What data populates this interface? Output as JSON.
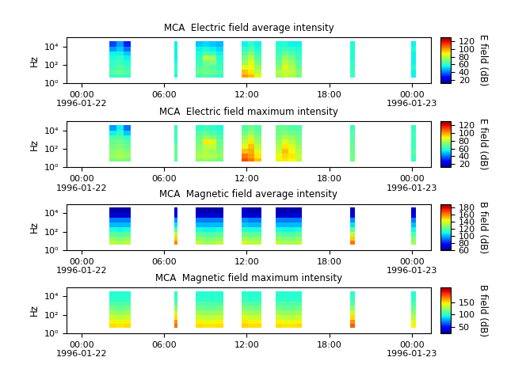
{
  "chart_data": [
    {
      "type": "heatmap",
      "title": "MCA  Electric field average intensity",
      "y_label": "Hz",
      "color": "jet",
      "log": "y",
      "xlim": [
        -1.1,
        25.4
      ],
      "xticks": [
        {
          "value": 0,
          "label": "00:00\n1996-01-22"
        },
        {
          "value": 6,
          "label": "06:00"
        },
        {
          "value": 12,
          "label": "12:00"
        },
        {
          "value": 18,
          "label": "18:00"
        },
        {
          "value": 24,
          "label": "00:00\n1996-01-23"
        }
      ],
      "ylim": [
        1,
        100000
      ],
      "yticks": [
        {
          "value": 1,
          "label": "10⁰"
        },
        {
          "value": 100,
          "label": "10²"
        },
        {
          "value": 10000,
          "label": "10⁴"
        }
      ],
      "x_edges": [
        2.0,
        2.53,
        3.07,
        3.6,
        6.75,
        7.0,
        8.3,
        8.8,
        9.3,
        9.8,
        10.3,
        11.65,
        12.12,
        12.58,
        13.05,
        14.1,
        14.58,
        15.05,
        15.53,
        16.0,
        19.55,
        19.85,
        23.95,
        24.3
      ],
      "y_edges": [
        4,
        10,
        30,
        100,
        300,
        1000,
        3000,
        10000,
        40000
      ],
      "cells": [
        [
          60,
          62,
          60,
          null,
          58,
          null,
          62,
          65,
          62,
          60,
          null,
          100,
          95,
          85,
          null,
          75,
          80,
          78,
          70,
          null,
          62,
          null,
          55
        ],
        [
          65,
          68,
          65,
          null,
          60,
          null,
          68,
          70,
          68,
          65,
          null,
          95,
          90,
          80,
          null,
          78,
          82,
          80,
          72,
          null,
          62,
          null,
          55
        ],
        [
          62,
          65,
          62,
          null,
          60,
          null,
          65,
          68,
          65,
          62,
          null,
          85,
          88,
          75,
          null,
          72,
          85,
          78,
          68,
          null,
          60,
          null,
          58
        ],
        [
          60,
          62,
          58,
          null,
          58,
          null,
          62,
          70,
          72,
          60,
          null,
          75,
          85,
          70,
          null,
          68,
          80,
          75,
          65,
          null,
          60,
          null,
          55
        ],
        [
          58,
          60,
          55,
          null,
          55,
          null,
          60,
          80,
          75,
          58,
          null,
          70,
          80,
          65,
          null,
          65,
          75,
          70,
          62,
          null,
          58,
          null,
          55
        ],
        [
          55,
          55,
          50,
          null,
          55,
          null,
          58,
          65,
          62,
          55,
          null,
          65,
          72,
          62,
          null,
          62,
          68,
          65,
          60,
          null,
          58,
          null,
          55
        ],
        [
          45,
          50,
          40,
          null,
          55,
          null,
          55,
          58,
          55,
          52,
          null,
          60,
          65,
          58,
          null,
          60,
          62,
          60,
          58,
          null,
          58,
          null,
          58
        ],
        [
          35,
          45,
          30,
          null,
          55,
          null,
          50,
          52,
          50,
          48,
          null,
          55,
          60,
          55,
          null,
          58,
          58,
          55,
          55,
          null,
          58,
          null,
          55
        ]
      ],
      "colorbar": {
        "label": "E field (dB)",
        "range": [
          12,
          130
        ],
        "ticks": [
          20,
          40,
          60,
          80,
          100,
          120
        ]
      }
    },
    {
      "type": "heatmap",
      "title": "MCA  Electric field maximum intensity",
      "y_label": "Hz",
      "color": "jet",
      "log": "y",
      "xlim": [
        -1.1,
        25.4
      ],
      "xticks": [
        {
          "value": 0,
          "label": "00:00\n1996-01-22"
        },
        {
          "value": 6,
          "label": "06:00"
        },
        {
          "value": 12,
          "label": "12:00"
        },
        {
          "value": 18,
          "label": "18:00"
        },
        {
          "value": 24,
          "label": "00:00\n1996-01-23"
        }
      ],
      "ylim": [
        1,
        100000
      ],
      "yticks": [
        {
          "value": 1,
          "label": "10⁰"
        },
        {
          "value": 100,
          "label": "10²"
        },
        {
          "value": 10000,
          "label": "10⁴"
        }
      ],
      "x_edges": [
        2.0,
        2.53,
        3.07,
        3.6,
        6.75,
        7.0,
        8.3,
        8.8,
        9.3,
        9.8,
        10.3,
        11.65,
        12.12,
        12.58,
        13.05,
        14.1,
        14.58,
        15.05,
        15.53,
        16.0,
        19.55,
        19.85,
        23.95,
        24.3
      ],
      "y_edges": [
        4,
        10,
        30,
        100,
        300,
        1000,
        3000,
        10000,
        40000
      ],
      "cells": [
        [
          70,
          72,
          70,
          null,
          65,
          null,
          72,
          75,
          72,
          70,
          null,
          110,
          105,
          95,
          null,
          85,
          90,
          88,
          80,
          null,
          70,
          null,
          62
        ],
        [
          75,
          78,
          75,
          null,
          68,
          null,
          78,
          80,
          78,
          75,
          null,
          105,
          100,
          90,
          null,
          88,
          92,
          90,
          82,
          null,
          70,
          null,
          62
        ],
        [
          72,
          75,
          72,
          null,
          68,
          null,
          75,
          78,
          75,
          72,
          null,
          95,
          98,
          85,
          null,
          82,
          95,
          88,
          78,
          null,
          68,
          null,
          65
        ],
        [
          70,
          72,
          68,
          null,
          66,
          null,
          72,
          80,
          82,
          70,
          null,
          85,
          95,
          80,
          null,
          78,
          90,
          85,
          75,
          null,
          68,
          null,
          62
        ],
        [
          68,
          70,
          65,
          null,
          64,
          null,
          70,
          90,
          85,
          68,
          null,
          80,
          90,
          75,
          null,
          75,
          85,
          80,
          72,
          null,
          66,
          null,
          62
        ],
        [
          65,
          65,
          60,
          null,
          62,
          null,
          68,
          75,
          72,
          65,
          null,
          75,
          82,
          72,
          null,
          72,
          78,
          75,
          70,
          null,
          65,
          null,
          62
        ],
        [
          55,
          60,
          50,
          null,
          62,
          null,
          65,
          68,
          65,
          62,
          null,
          70,
          75,
          68,
          null,
          70,
          72,
          70,
          68,
          null,
          65,
          null,
          62
        ],
        [
          45,
          55,
          40,
          null,
          60,
          null,
          60,
          62,
          60,
          58,
          null,
          65,
          70,
          65,
          null,
          68,
          68,
          65,
          65,
          null,
          62,
          null,
          60
        ]
      ],
      "colorbar": {
        "label": "E field (dB)",
        "range": [
          12,
          130
        ],
        "ticks": [
          20,
          40,
          60,
          80,
          100,
          120
        ]
      }
    },
    {
      "type": "heatmap",
      "title": "MCA  Magnetic field average intensity",
      "y_label": "Hz",
      "color": "jet",
      "log": "y",
      "xlim": [
        -1.1,
        25.4
      ],
      "xticks": [
        {
          "value": 0,
          "label": "00:00\n1996-01-22"
        },
        {
          "value": 6,
          "label": "06:00"
        },
        {
          "value": 12,
          "label": "12:00"
        },
        {
          "value": 18,
          "label": "18:00"
        },
        {
          "value": 24,
          "label": "00:00\n1996-01-23"
        }
      ],
      "ylim": [
        1,
        100000
      ],
      "yticks": [
        {
          "value": 1,
          "label": "10⁰"
        },
        {
          "value": 100,
          "label": "10²"
        },
        {
          "value": 10000,
          "label": "10⁴"
        }
      ],
      "x_edges": [
        2.0,
        2.53,
        3.07,
        3.6,
        6.75,
        7.0,
        8.3,
        8.8,
        9.3,
        9.8,
        10.3,
        11.65,
        12.12,
        12.58,
        13.05,
        14.1,
        14.58,
        15.05,
        15.53,
        16.0,
        19.55,
        19.85,
        23.95,
        24.3
      ],
      "y_edges": [
        4,
        10,
        30,
        100,
        300,
        1000,
        3000,
        10000,
        40000
      ],
      "cells": [
        [
          135,
          132,
          135,
          null,
          160,
          null,
          135,
          130,
          132,
          135,
          null,
          138,
          135,
          135,
          null,
          135,
          132,
          132,
          135,
          null,
          162,
          null,
          130
        ],
        [
          128,
          125,
          128,
          null,
          150,
          null,
          128,
          125,
          125,
          128,
          null,
          130,
          128,
          128,
          null,
          128,
          125,
          125,
          128,
          null,
          150,
          null,
          125
        ],
        [
          120,
          118,
          120,
          null,
          135,
          null,
          120,
          118,
          118,
          120,
          null,
          122,
          120,
          120,
          null,
          120,
          118,
          118,
          120,
          null,
          135,
          null,
          118
        ],
        [
          110,
          108,
          110,
          null,
          120,
          null,
          110,
          108,
          108,
          110,
          null,
          112,
          110,
          110,
          null,
          110,
          108,
          108,
          110,
          null,
          120,
          null,
          108
        ],
        [
          100,
          100,
          100,
          null,
          105,
          null,
          100,
          100,
          100,
          100,
          null,
          102,
          100,
          100,
          null,
          100,
          100,
          100,
          100,
          null,
          105,
          null,
          100
        ],
        [
          92,
          92,
          92,
          null,
          95,
          null,
          92,
          92,
          92,
          92,
          null,
          95,
          92,
          92,
          null,
          92,
          92,
          92,
          92,
          null,
          95,
          null,
          92
        ],
        [
          70,
          70,
          70,
          null,
          72,
          null,
          70,
          70,
          70,
          70,
          null,
          72,
          70,
          70,
          null,
          70,
          70,
          70,
          70,
          null,
          72,
          null,
          72
        ],
        [
          65,
          65,
          65,
          null,
          68,
          null,
          65,
          65,
          65,
          65,
          null,
          68,
          65,
          65,
          null,
          65,
          65,
          65,
          65,
          null,
          68,
          null,
          68
        ]
      ],
      "colorbar": {
        "label": "B field (dB)",
        "range": [
          60,
          190
        ],
        "ticks": [
          60,
          80,
          100,
          120,
          140,
          160,
          180
        ]
      }
    },
    {
      "type": "heatmap",
      "title": "MCA  Magnetic field maximum intensity",
      "y_label": "Hz",
      "color": "jet",
      "log": "y",
      "xlim": [
        -1.1,
        25.4
      ],
      "xticks": [
        {
          "value": 0,
          "label": "00:00\n1996-01-22"
        },
        {
          "value": 6,
          "label": "06:00"
        },
        {
          "value": 12,
          "label": "12:00"
        },
        {
          "value": 18,
          "label": "18:00"
        },
        {
          "value": 24,
          "label": "00:00\n1996-01-23"
        }
      ],
      "ylim": [
        1,
        100000
      ],
      "yticks": [
        {
          "value": 1,
          "label": "10⁰"
        },
        {
          "value": 100,
          "label": "10²"
        },
        {
          "value": 10000,
          "label": "10⁴"
        }
      ],
      "x_edges": [
        2.0,
        2.53,
        3.07,
        3.6,
        6.75,
        7.0,
        8.3,
        8.8,
        9.3,
        9.8,
        10.3,
        11.65,
        12.12,
        12.58,
        13.05,
        14.1,
        14.58,
        15.05,
        15.53,
        16.0,
        19.55,
        19.85,
        23.95,
        24.3
      ],
      "y_edges": [
        4,
        10,
        30,
        100,
        300,
        1000,
        3000,
        10000,
        40000
      ],
      "cells": [
        [
          150,
          148,
          150,
          null,
          172,
          null,
          150,
          148,
          148,
          150,
          null,
          152,
          150,
          150,
          null,
          150,
          148,
          148,
          150,
          null,
          175,
          null,
          145
        ],
        [
          145,
          142,
          145,
          null,
          165,
          null,
          145,
          142,
          142,
          145,
          null,
          148,
          145,
          145,
          null,
          145,
          142,
          142,
          145,
          null,
          165,
          null,
          140
        ],
        [
          135,
          132,
          135,
          null,
          150,
          null,
          135,
          132,
          132,
          135,
          null,
          138,
          135,
          135,
          null,
          135,
          132,
          132,
          135,
          null,
          150,
          null,
          130
        ],
        [
          125,
          122,
          125,
          null,
          135,
          null,
          125,
          122,
          122,
          125,
          null,
          128,
          125,
          125,
          null,
          125,
          122,
          122,
          125,
          null,
          135,
          null,
          122
        ],
        [
          115,
          112,
          115,
          null,
          120,
          null,
          115,
          112,
          112,
          115,
          null,
          118,
          115,
          115,
          null,
          115,
          112,
          112,
          115,
          null,
          120,
          null,
          112
        ],
        [
          108,
          108,
          108,
          null,
          110,
          null,
          108,
          108,
          108,
          108,
          null,
          110,
          108,
          108,
          null,
          108,
          108,
          108,
          108,
          null,
          110,
          null,
          108
        ],
        [
          100,
          100,
          100,
          null,
          102,
          null,
          100,
          100,
          100,
          100,
          null,
          102,
          100,
          100,
          null,
          100,
          100,
          100,
          100,
          null,
          102,
          null,
          100
        ],
        [
          98,
          98,
          98,
          null,
          100,
          null,
          98,
          98,
          98,
          98,
          null,
          100,
          98,
          98,
          null,
          98,
          98,
          98,
          98,
          null,
          100,
          null,
          98
        ]
      ],
      "colorbar": {
        "label": "B field (dB)",
        "range": [
          25,
          210
        ],
        "ticks": [
          50,
          100,
          150
        ]
      }
    }
  ]
}
